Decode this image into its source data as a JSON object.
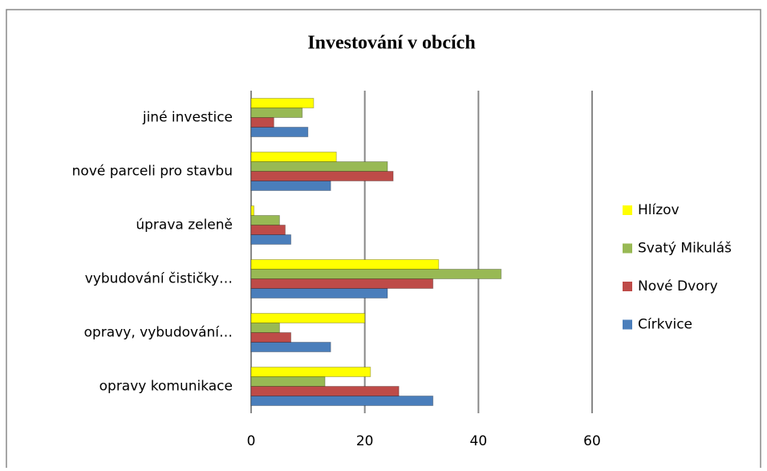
{
  "chart_data": {
    "type": "bar",
    "orientation": "horizontal",
    "title": "Investování v obcích",
    "categories": [
      "opravy komunikace",
      "opravy, vybudování…",
      "vybudování čističky…",
      "úprava zeleně",
      "nové parceli pro stavbu",
      "jiné investice"
    ],
    "series": [
      {
        "name": "Církvice",
        "color": "#4a7ebb",
        "values": [
          32,
          14,
          24,
          7,
          14,
          10
        ]
      },
      {
        "name": "Nové Dvory",
        "color": "#be4b48",
        "values": [
          26,
          7,
          32,
          6,
          25,
          4
        ]
      },
      {
        "name": "Svatý Mikuláš",
        "color": "#98b954",
        "values": [
          13,
          5,
          44,
          5,
          24,
          9
        ]
      },
      {
        "name": "Hlízov",
        "color": "#ffff00",
        "values": [
          21,
          20,
          33,
          0.5,
          15,
          11
        ]
      }
    ],
    "xlim": [
      0,
      60
    ],
    "xticks": [
      0,
      20,
      40,
      60
    ],
    "grid": true,
    "legend": "right"
  }
}
